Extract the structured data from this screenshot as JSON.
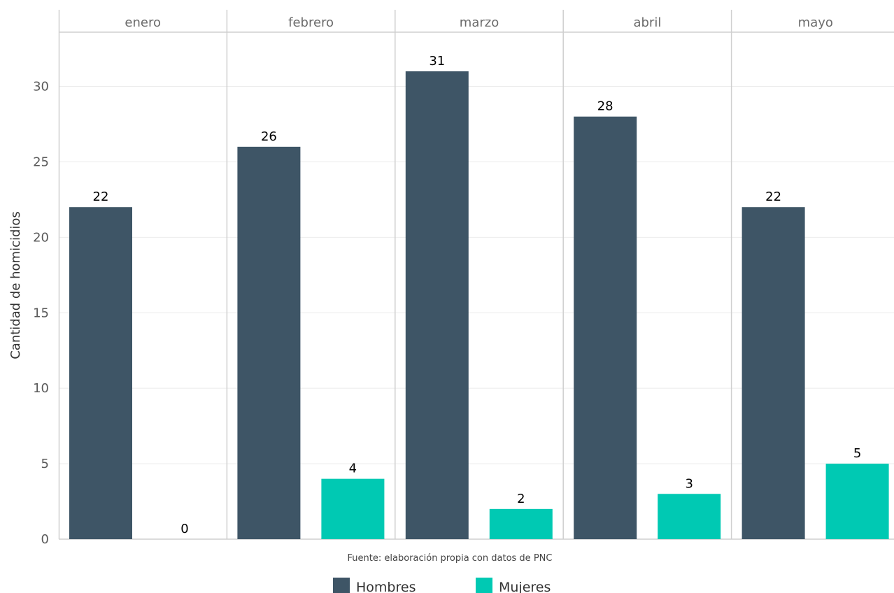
{
  "chart_data": {
    "type": "bar",
    "ylabel": "Cantidad de homicidios",
    "xlabel": "",
    "caption": "Fuente: elaboración propia con datos de PNC",
    "ylim": [
      0,
      33.5
    ],
    "yticks": [
      0,
      5,
      10,
      15,
      20,
      25,
      30
    ],
    "ytick_labels": [
      "0",
      "5",
      "10",
      "15",
      "20",
      "25",
      "30"
    ],
    "facets": [
      "enero",
      "febrero",
      "marzo",
      "abril",
      "mayo"
    ],
    "series": [
      {
        "name": "Hombres",
        "color": "#3e5566",
        "values": [
          22,
          26,
          31,
          28,
          22
        ]
      },
      {
        "name": "Mujeres",
        "color": "#00c9b3",
        "values": [
          0,
          4,
          2,
          3,
          5
        ]
      }
    ],
    "legend_position": "bottom",
    "grid": true
  }
}
